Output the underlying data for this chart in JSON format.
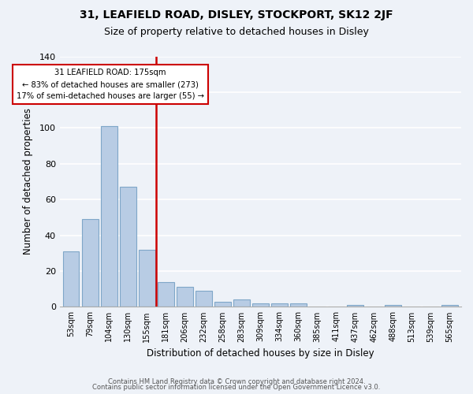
{
  "title_line1": "31, LEAFIELD ROAD, DISLEY, STOCKPORT, SK12 2JF",
  "title_line2": "Size of property relative to detached houses in Disley",
  "bar_values": [
    31,
    49,
    101,
    67,
    32,
    14,
    11,
    9,
    3,
    4,
    2,
    2,
    2,
    0,
    0,
    1,
    0,
    1,
    0,
    0,
    1
  ],
  "x_labels": [
    "53sqm",
    "79sqm",
    "104sqm",
    "130sqm",
    "155sqm",
    "181sqm",
    "206sqm",
    "232sqm",
    "258sqm",
    "283sqm",
    "309sqm",
    "334sqm",
    "360sqm",
    "385sqm",
    "411sqm",
    "437sqm",
    "462sqm",
    "488sqm",
    "513sqm",
    "539sqm",
    "565sqm"
  ],
  "bar_color": "#b8cce4",
  "bar_edge_color": "#7fa7c8",
  "red_line_index": 5,
  "red_line_color": "#cc0000",
  "annotation_title": "31 LEAFIELD ROAD: 175sqm",
  "annotation_line2": "← 83% of detached houses are smaller (273)",
  "annotation_line3": "17% of semi-detached houses are larger (55) →",
  "annotation_box_color": "#ffffff",
  "annotation_box_edge": "#cc0000",
  "xlabel": "Distribution of detached houses by size in Disley",
  "ylabel": "Number of detached properties",
  "ylim": [
    0,
    140
  ],
  "yticks": [
    0,
    20,
    40,
    60,
    80,
    100,
    120,
    140
  ],
  "footer_line1": "Contains HM Land Registry data © Crown copyright and database right 2024.",
  "footer_line2": "Contains public sector information licensed under the Open Government Licence v3.0.",
  "background_color": "#eef2f8",
  "grid_color": "#ffffff"
}
